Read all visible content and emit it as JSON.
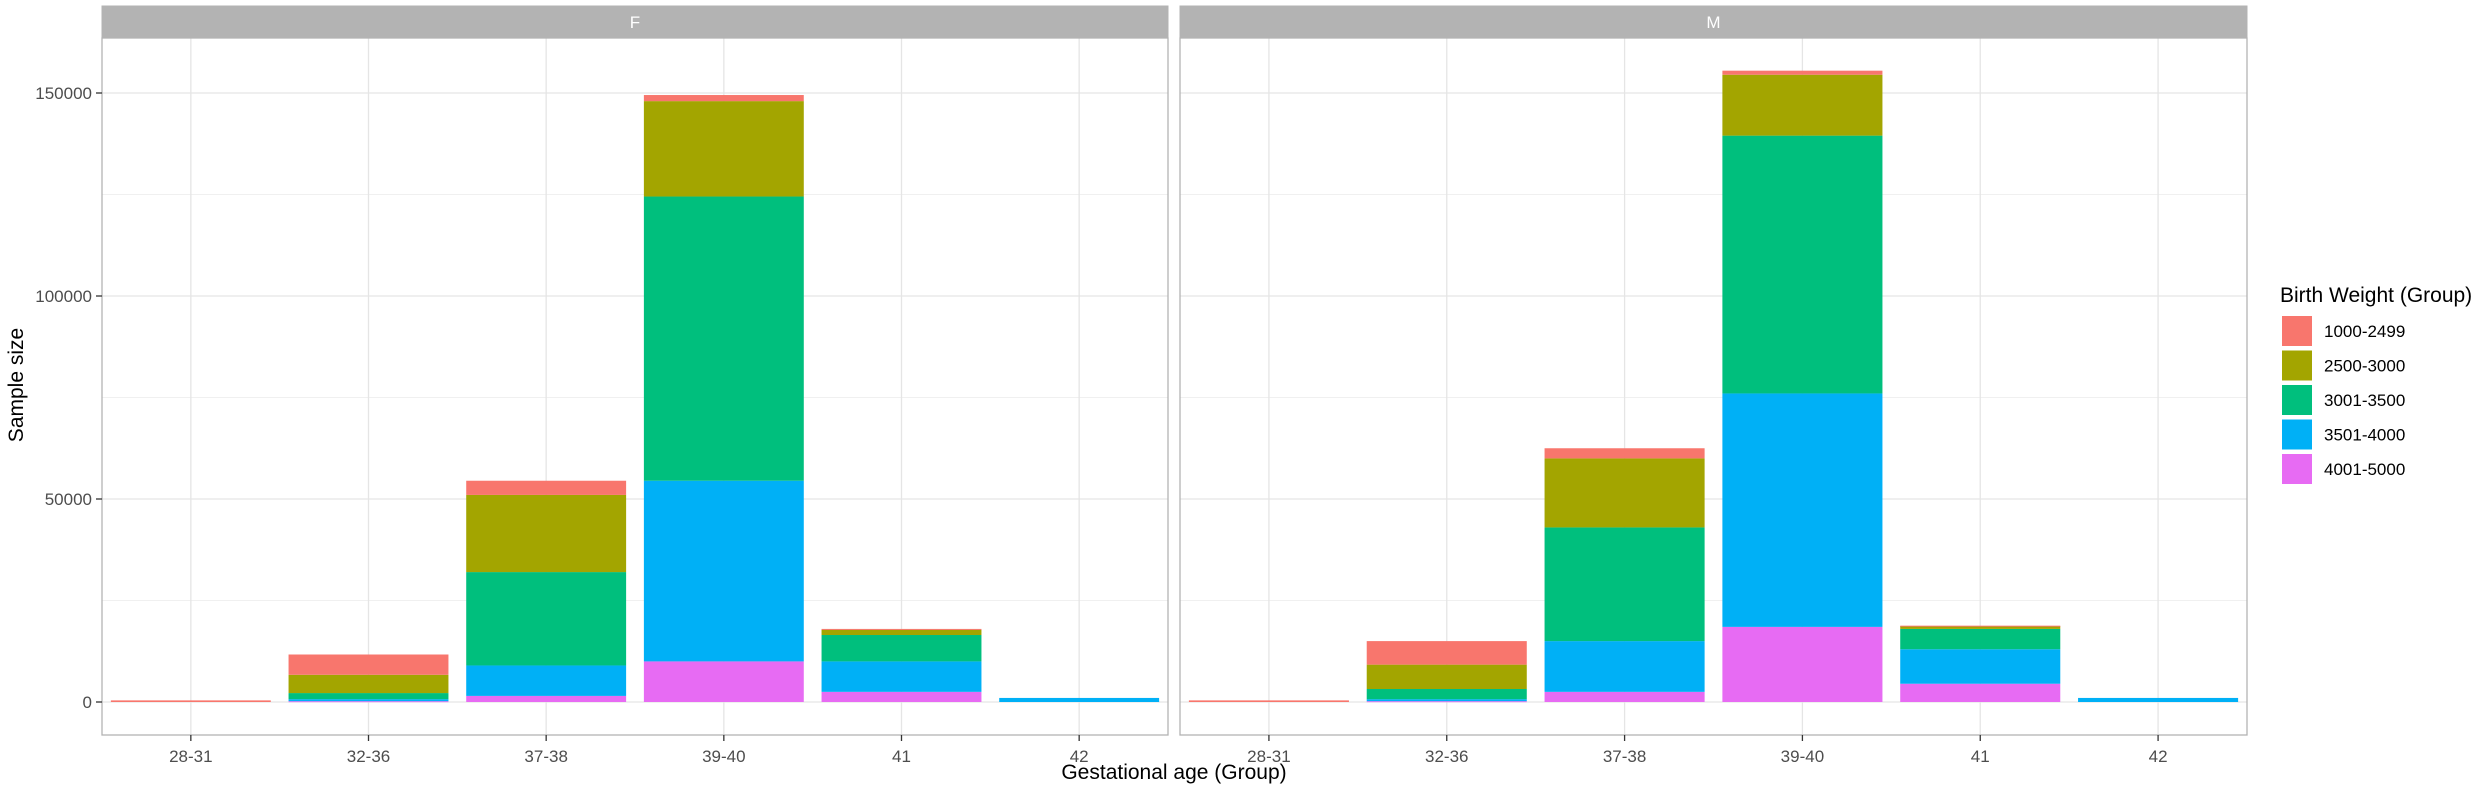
{
  "chart_data": {
    "type": "bar",
    "stacked": true,
    "xlabel": "Gestational age (Group)",
    "ylabel": "Sample size",
    "ylim": [
      0,
      160000
    ],
    "yticks": [
      0,
      50000,
      100000,
      150000
    ],
    "ytick_labels": [
      "0",
      "50000",
      "100000",
      "150000"
    ],
    "categories": [
      "28-31",
      "32-36",
      "37-38",
      "39-40",
      "41",
      "42"
    ],
    "grid": true,
    "legend": {
      "title": "Birth Weight (Group)",
      "placement": "right",
      "entries": [
        "1000-2499",
        "2500-3000",
        "3001-3500",
        "3501-4000",
        "4001-5000"
      ]
    },
    "colors": {
      "1000-2499": "#F8766D",
      "2500-3000": "#A3A500",
      "3001-3500": "#00BF7D",
      "3501-4000": "#00B0F6",
      "4001-5000": "#E76BF3"
    },
    "panels": [
      {
        "label": "F",
        "series": [
          {
            "name": "4001-5000",
            "values": [
              0,
              200,
              1500,
              10000,
              2500,
              0
            ]
          },
          {
            "name": "3501-4000",
            "values": [
              0,
              500,
              7500,
              44500,
              7500,
              1000
            ]
          },
          {
            "name": "3001-3500",
            "values": [
              0,
              1500,
              23000,
              70000,
              6500,
              0
            ]
          },
          {
            "name": "2500-3000",
            "values": [
              0,
              4500,
              19000,
              23500,
              1300,
              0
            ]
          },
          {
            "name": "1000-2499",
            "values": [
              400,
              5000,
              3500,
              1500,
              200,
              0
            ]
          }
        ]
      },
      {
        "label": "M",
        "series": [
          {
            "name": "4001-5000",
            "values": [
              0,
              200,
              2500,
              18500,
              4500,
              0
            ]
          },
          {
            "name": "3501-4000",
            "values": [
              0,
              500,
              12500,
              57500,
              8500,
              1000
            ]
          },
          {
            "name": "3001-3500",
            "values": [
              0,
              2500,
              28000,
              63500,
              5000,
              0
            ]
          },
          {
            "name": "2500-3000",
            "values": [
              0,
              6000,
              17000,
              15000,
              700,
              0
            ]
          },
          {
            "name": "1000-2499",
            "values": [
              400,
              5800,
              2500,
              1000,
              100,
              0
            ]
          }
        ]
      }
    ]
  }
}
